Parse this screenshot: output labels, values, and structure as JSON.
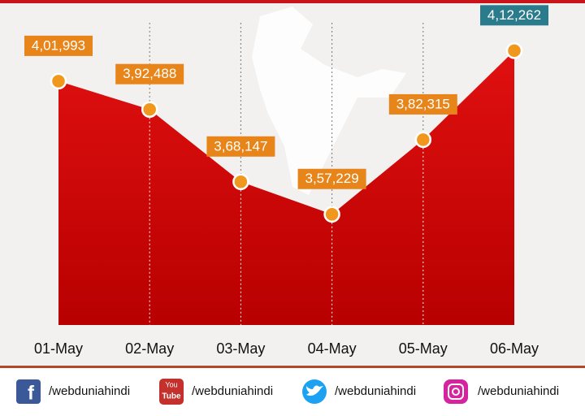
{
  "chart_data": {
    "type": "area",
    "categories": [
      "01-May",
      "02-May",
      "03-May",
      "04-May",
      "05-May",
      "06-May"
    ],
    "values": [
      401993,
      392488,
      368147,
      357229,
      382315,
      412262
    ],
    "value_labels": [
      "4,01,993",
      "3,92,488",
      "3,68,147",
      "3,57,229",
      "3,82,315",
      "4,12,262"
    ],
    "ylim": [
      320000,
      420000
    ],
    "color": "#d40a0a",
    "marker_color": "#f0981e",
    "label_color": "#e8851a",
    "highlight_label_color": "#2a7b8c"
  },
  "footer": {
    "handles": [
      "/webduniahindi",
      "/webduniahindi",
      "/webduniahindi",
      "/webduniahindi"
    ],
    "youtube_icon_text": [
      "You",
      "Tube"
    ]
  }
}
